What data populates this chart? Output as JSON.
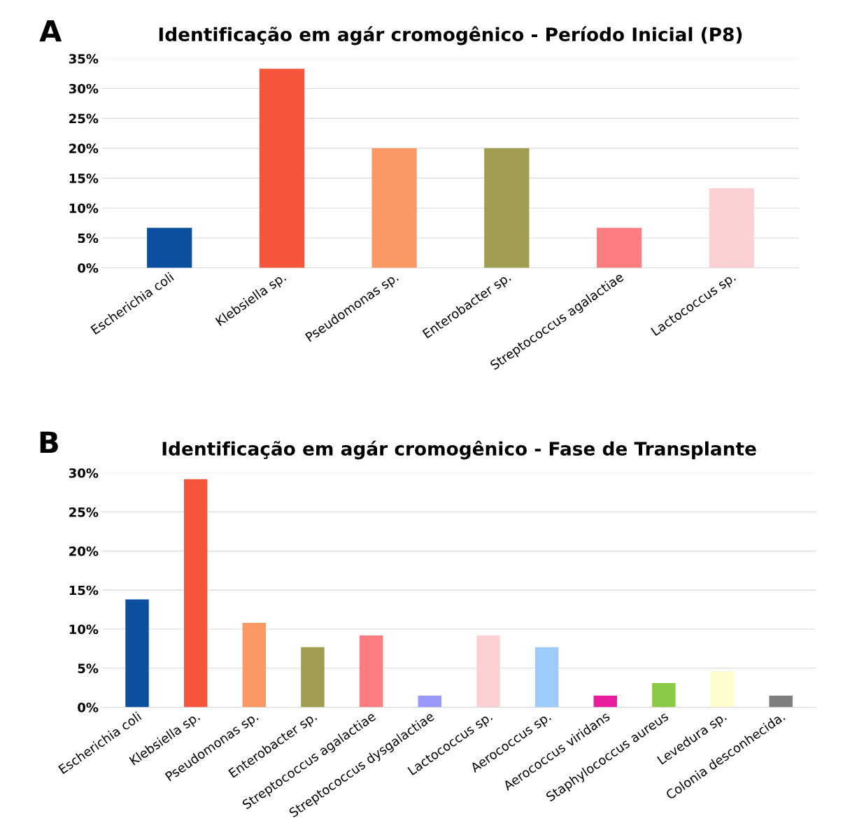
{
  "chart_data": [
    {
      "type": "bar",
      "title": "Identificação em agár cromogênico - Período Inicial (P8)",
      "annotations": [
        "A"
      ],
      "categories": [
        "Escherichia coli",
        "Klebsiella sp.",
        "Pseudomonas sp.",
        "Enterobacter sp.",
        "Streptococcus agalactiae",
        "Lactococcus sp."
      ],
      "values": [
        6.7,
        33.3,
        20,
        20,
        6.7,
        13.3
      ],
      "colors": [
        "#0b4f9e",
        "#f4553b",
        "#fb9965",
        "#a09d51",
        "#fb7d7f",
        "#fdd1d4"
      ],
      "ylim": [
        0,
        35
      ],
      "yticks": [
        {
          "value": 0,
          "label": "0%"
        },
        {
          "value": 5,
          "label": "5%"
        },
        {
          "value": 10,
          "label": "10%"
        },
        {
          "value": 15,
          "label": "15%"
        },
        {
          "value": 20,
          "label": "20%"
        },
        {
          "value": 25,
          "label": "25%"
        },
        {
          "value": 30,
          "label": "30%"
        },
        {
          "value": 35,
          "label": "35%"
        }
      ],
      "grid": "y"
    },
    {
      "type": "bar",
      "title": "Identificação em agár cromogênico - Fase de Transplante",
      "annotations": [
        "B"
      ],
      "categories": [
        "Escherichia coli",
        "Klebsiella sp.",
        "Pseudomonas sp.",
        "Enterobacter sp.",
        "Streptococcus agalactiae",
        "Streptococcus dysgalactiae",
        "Lactococcus sp.",
        "Aerococcus sp.",
        "Aerococcus viridans",
        "Staphylococcus aureus",
        "Levedura sp.",
        "Colonia desconhecida."
      ],
      "values": [
        13.8,
        29.2,
        10.8,
        7.7,
        9.2,
        1.5,
        9.2,
        7.7,
        1.5,
        3.1,
        4.6,
        1.5
      ],
      "colors": [
        "#0b4f9e",
        "#f4553b",
        "#fb9965",
        "#a09d51",
        "#fb7d7f",
        "#9999fb",
        "#fdd1d4",
        "#9ccbfc",
        "#e81c9c",
        "#8acb46",
        "#fefccc",
        "#7f7f7f"
      ],
      "ylim": [
        0,
        30
      ],
      "yticks": [
        {
          "value": 0,
          "label": "0%"
        },
        {
          "value": 5,
          "label": "5%"
        },
        {
          "value": 10,
          "label": "10%"
        },
        {
          "value": 15,
          "label": "15%"
        },
        {
          "value": 20,
          "label": "20%"
        },
        {
          "value": 25,
          "label": "25%"
        },
        {
          "value": 30,
          "label": "30%"
        }
      ],
      "grid": "y"
    }
  ]
}
